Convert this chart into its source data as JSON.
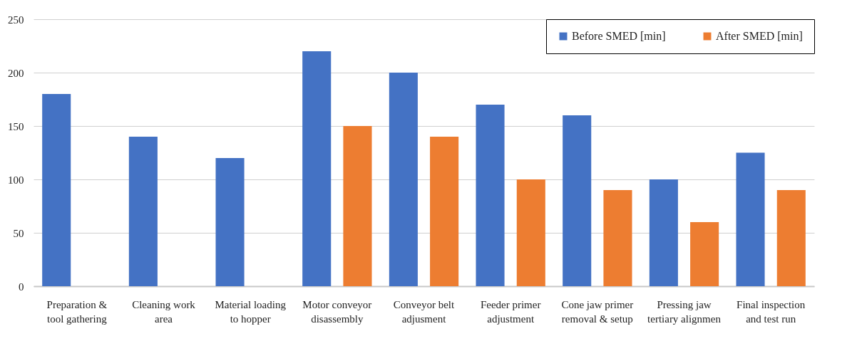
{
  "chart_data": {
    "type": "bar",
    "categories": [
      "Preparation & tool gathering",
      "Cleaning work area",
      "Material loading to hopper",
      "Motor conveyor disassembly",
      "Conveyor belt adjusment",
      "Feeder primer adjustment",
      "Cone jaw primer removal & setup",
      "Pressing jaw tertiary alignmen",
      "Final inspection and test run"
    ],
    "series": [
      {
        "name": "Before SMED [min]",
        "color": "#4472c4",
        "values": [
          180,
          140,
          120,
          220,
          200,
          170,
          160,
          100,
          125
        ]
      },
      {
        "name": "After SMED [min]",
        "color": "#ed7d31",
        "values": [
          null,
          null,
          null,
          150,
          140,
          100,
          90,
          60,
          90
        ]
      }
    ],
    "ylim": [
      0,
      250
    ],
    "yticks": [
      0,
      50,
      100,
      150,
      200,
      250
    ],
    "grid": "y",
    "legend": "top right"
  }
}
